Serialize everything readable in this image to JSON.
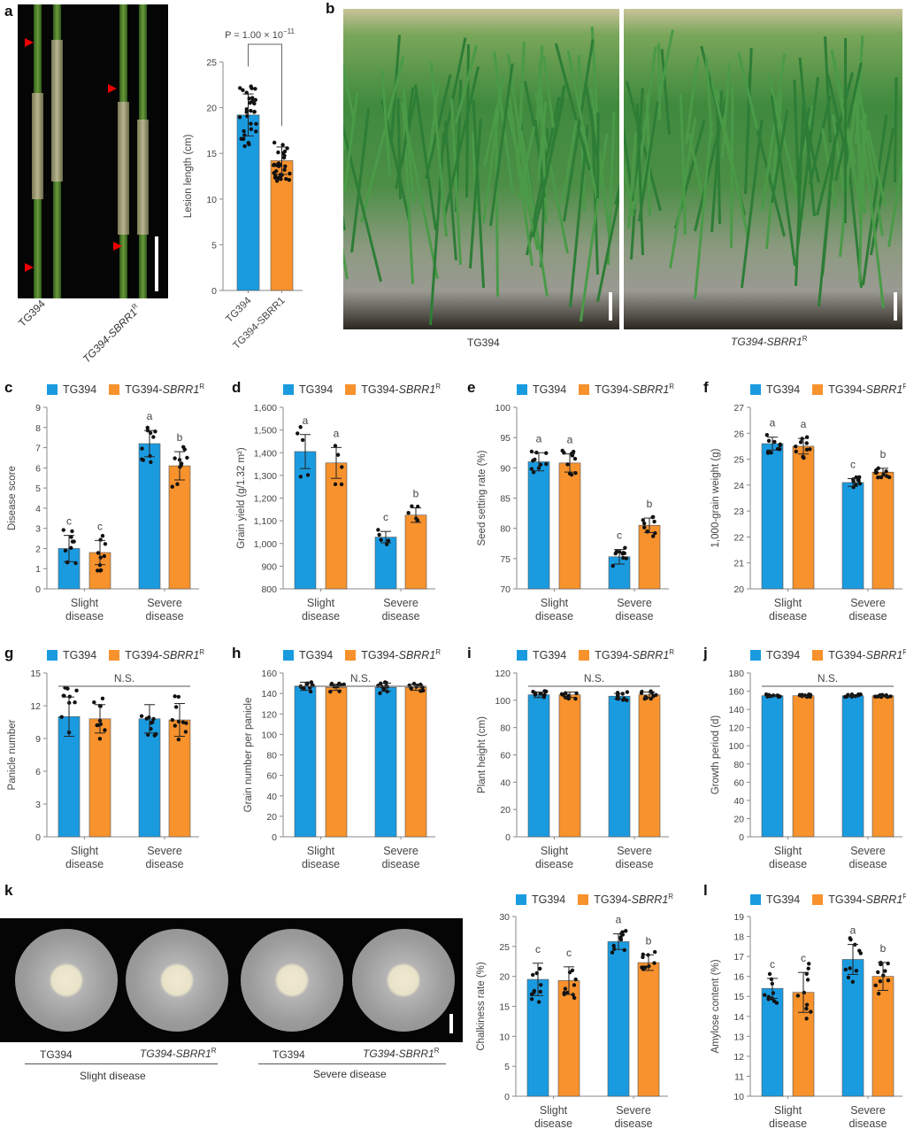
{
  "panel_letters": [
    "a",
    "b",
    "c",
    "d",
    "e",
    "f",
    "g",
    "h",
    "i",
    "j",
    "k",
    "l"
  ],
  "colors": {
    "tg394": "#1a9be0",
    "sbrr1": "#f7922d",
    "dots": "#111111",
    "axis": "#888888"
  },
  "legend": {
    "tg394": "TG394",
    "sbrr1": "TG394-SBRR1",
    "sup": "R"
  },
  "photo_a": {
    "labels": [
      "TG394",
      "TG394-SBRR1"
    ],
    "sup": "R"
  },
  "photo_b": {
    "labels": [
      "TG394",
      "TG394-SBRR1"
    ],
    "sup": "R"
  },
  "photo_k": {
    "labels": [
      "TG394",
      "TG394-SBRR1",
      "TG394",
      "TG394-SBRR1"
    ],
    "sup": "R",
    "groups": [
      "Slight disease",
      "Severe disease"
    ]
  },
  "chart_data": [
    {
      "id": "a",
      "type": "bar",
      "ylabel": "Lesion length (cm)",
      "ylim": [
        0,
        25
      ],
      "yticks": [
        "0",
        "5",
        "10",
        "15",
        "20",
        "25"
      ],
      "categories": [
        "TG394",
        "TG394-SBRR1R"
      ],
      "annotation": "P = 1.00 × 10",
      "annotation_exp": "−11",
      "bars": [
        {
          "mean": 19.2,
          "sd": 2.3,
          "n": 30
        },
        {
          "mean": 14.2,
          "sd": 1.5,
          "n": 30
        }
      ]
    },
    {
      "id": "c",
      "type": "bar",
      "ylabel": "Disease score",
      "ylim": [
        0,
        9
      ],
      "yticks": [
        "0",
        "1",
        "2",
        "3",
        "4",
        "5",
        "6",
        "7",
        "8",
        "9"
      ],
      "groups": [
        "Slight disease",
        "Severe disease"
      ],
      "bars": [
        {
          "mean": 2.0,
          "sd": 0.65,
          "sig": "c",
          "n": 10
        },
        {
          "mean": 1.8,
          "sd": 0.6,
          "sig": "c",
          "n": 10
        },
        {
          "mean": 7.2,
          "sd": 0.65,
          "sig": "a",
          "n": 10
        },
        {
          "mean": 6.1,
          "sd": 0.7,
          "sig": "b",
          "n": 10
        }
      ]
    },
    {
      "id": "d",
      "type": "bar",
      "ylabel": "Grain yield (g/1.32 m²)",
      "ylim": [
        800,
        1600
      ],
      "yticks": [
        "800",
        "900",
        "1,000",
        "1,100",
        "1,200",
        "1,300",
        "1,400",
        "1,500",
        "1,600"
      ],
      "groups": [
        "Slight disease",
        "Severe disease"
      ],
      "bars": [
        {
          "mean": 1405,
          "sd": 75,
          "sig": "a",
          "n": 5
        },
        {
          "mean": 1355,
          "sd": 68,
          "sig": "a",
          "n": 5
        },
        {
          "mean": 1028,
          "sd": 25,
          "sig": "c",
          "n": 5
        },
        {
          "mean": 1125,
          "sd": 32,
          "sig": "b",
          "n": 5
        }
      ]
    },
    {
      "id": "e",
      "type": "bar",
      "ylabel": "Seed setting rate (%)",
      "ylim": [
        70,
        100
      ],
      "yticks": [
        "70",
        "75",
        "80",
        "85",
        "90",
        "95",
        "100"
      ],
      "groups": [
        "Slight disease",
        "Severe disease"
      ],
      "bars": [
        {
          "mean": 91.0,
          "sd": 1.5,
          "sig": "a",
          "n": 10
        },
        {
          "mean": 90.8,
          "sd": 1.5,
          "sig": "a",
          "n": 10
        },
        {
          "mean": 75.3,
          "sd": 1.2,
          "sig": "c",
          "n": 10
        },
        {
          "mean": 80.5,
          "sd": 1.2,
          "sig": "b",
          "n": 10
        }
      ]
    },
    {
      "id": "f",
      "type": "bar",
      "ylabel": "1,000-grain weight (g)",
      "ylim": [
        20,
        27
      ],
      "yticks": [
        "20",
        "21",
        "22",
        "23",
        "24",
        "25",
        "26",
        "27"
      ],
      "groups": [
        "Slight disease",
        "Severe disease"
      ],
      "bars": [
        {
          "mean": 25.6,
          "sd": 0.25,
          "sig": "a",
          "n": 10
        },
        {
          "mean": 25.5,
          "sd": 0.3,
          "sig": "a",
          "n": 10
        },
        {
          "mean": 24.1,
          "sd": 0.15,
          "sig": "c",
          "n": 10
        },
        {
          "mean": 24.5,
          "sd": 0.15,
          "sig": "b",
          "n": 10
        }
      ]
    },
    {
      "id": "g",
      "type": "bar",
      "ylabel": "Panicle number",
      "ylim": [
        0,
        15
      ],
      "yticks": [
        "0",
        "3",
        "6",
        "9",
        "12",
        "15"
      ],
      "annotation": "N.S.",
      "groups": [
        "Slight disease",
        "Severe disease"
      ],
      "bars": [
        {
          "mean": 11.0,
          "sd": 1.8,
          "n": 10
        },
        {
          "mean": 10.8,
          "sd": 1.3,
          "n": 10
        },
        {
          "mean": 10.8,
          "sd": 1.3,
          "n": 10
        },
        {
          "mean": 10.7,
          "sd": 1.5,
          "n": 10
        }
      ]
    },
    {
      "id": "h",
      "type": "bar",
      "ylabel": "Grain number per panicle",
      "ylim": [
        0,
        160
      ],
      "yticks": [
        "0",
        "20",
        "40",
        "60",
        "80",
        "100",
        "120",
        "140",
        "160"
      ],
      "annotation": "N.S.",
      "groups": [
        "Slight disease",
        "Severe disease"
      ],
      "bars": [
        {
          "mean": 147,
          "sd": 4,
          "n": 10
        },
        {
          "mean": 146,
          "sd": 3,
          "n": 10
        },
        {
          "mean": 146,
          "sd": 4,
          "n": 10
        },
        {
          "mean": 146,
          "sd": 3,
          "n": 10
        }
      ]
    },
    {
      "id": "i",
      "type": "bar",
      "ylabel": "Plant height (cm)",
      "ylim": [
        0,
        120
      ],
      "yticks": [
        "0",
        "20",
        "40",
        "60",
        "80",
        "100",
        "120"
      ],
      "annotation": "N.S.",
      "groups": [
        "Slight disease",
        "Severe disease"
      ],
      "bars": [
        {
          "mean": 104,
          "sd": 2,
          "n": 10
        },
        {
          "mean": 104,
          "sd": 2,
          "n": 10
        },
        {
          "mean": 103,
          "sd": 2,
          "n": 10
        },
        {
          "mean": 104,
          "sd": 2,
          "n": 10
        }
      ]
    },
    {
      "id": "j",
      "type": "bar",
      "ylabel": "Growth period (d)",
      "ylim": [
        0,
        180
      ],
      "yticks": [
        "0",
        "20",
        "40",
        "60",
        "80",
        "100",
        "120",
        "140",
        "160",
        "180"
      ],
      "annotation": "N.S.",
      "groups": [
        "Slight disease",
        "Severe disease"
      ],
      "bars": [
        {
          "mean": 155,
          "sd": 1,
          "n": 10
        },
        {
          "mean": 155,
          "sd": 1,
          "n": 10
        },
        {
          "mean": 155,
          "sd": 1,
          "n": 10
        },
        {
          "mean": 155,
          "sd": 1,
          "n": 10
        }
      ]
    },
    {
      "id": "k",
      "type": "bar",
      "ylabel": "Chalkiness rate (%)",
      "ylim": [
        0,
        30
      ],
      "yticks": [
        "0",
        "5",
        "10",
        "15",
        "20",
        "25",
        "30"
      ],
      "groups": [
        "Slight disease",
        "Severe disease"
      ],
      "bars": [
        {
          "mean": 19.5,
          "sd": 2.7,
          "sig": "c",
          "n": 10
        },
        {
          "mean": 19.3,
          "sd": 2.3,
          "sig": "c",
          "n": 10
        },
        {
          "mean": 25.8,
          "sd": 1.3,
          "sig": "a",
          "n": 10
        },
        {
          "mean": 22.3,
          "sd": 1.3,
          "sig": "b",
          "n": 10
        }
      ]
    },
    {
      "id": "l",
      "type": "bar",
      "ylabel": "Amylose content (%)",
      "ylim": [
        10,
        19
      ],
      "yticks": [
        "10",
        "11",
        "12",
        "13",
        "14",
        "15",
        "16",
        "17",
        "18",
        "19"
      ],
      "groups": [
        "Slight disease",
        "Severe disease"
      ],
      "bars": [
        {
          "mean": 15.4,
          "sd": 0.5,
          "sig": "c",
          "n": 10
        },
        {
          "mean": 15.2,
          "sd": 1.0,
          "sig": "c",
          "n": 10
        },
        {
          "mean": 16.85,
          "sd": 0.75,
          "sig": "a",
          "n": 10
        },
        {
          "mean": 16.0,
          "sd": 0.7,
          "sig": "b",
          "n": 10
        }
      ]
    }
  ]
}
